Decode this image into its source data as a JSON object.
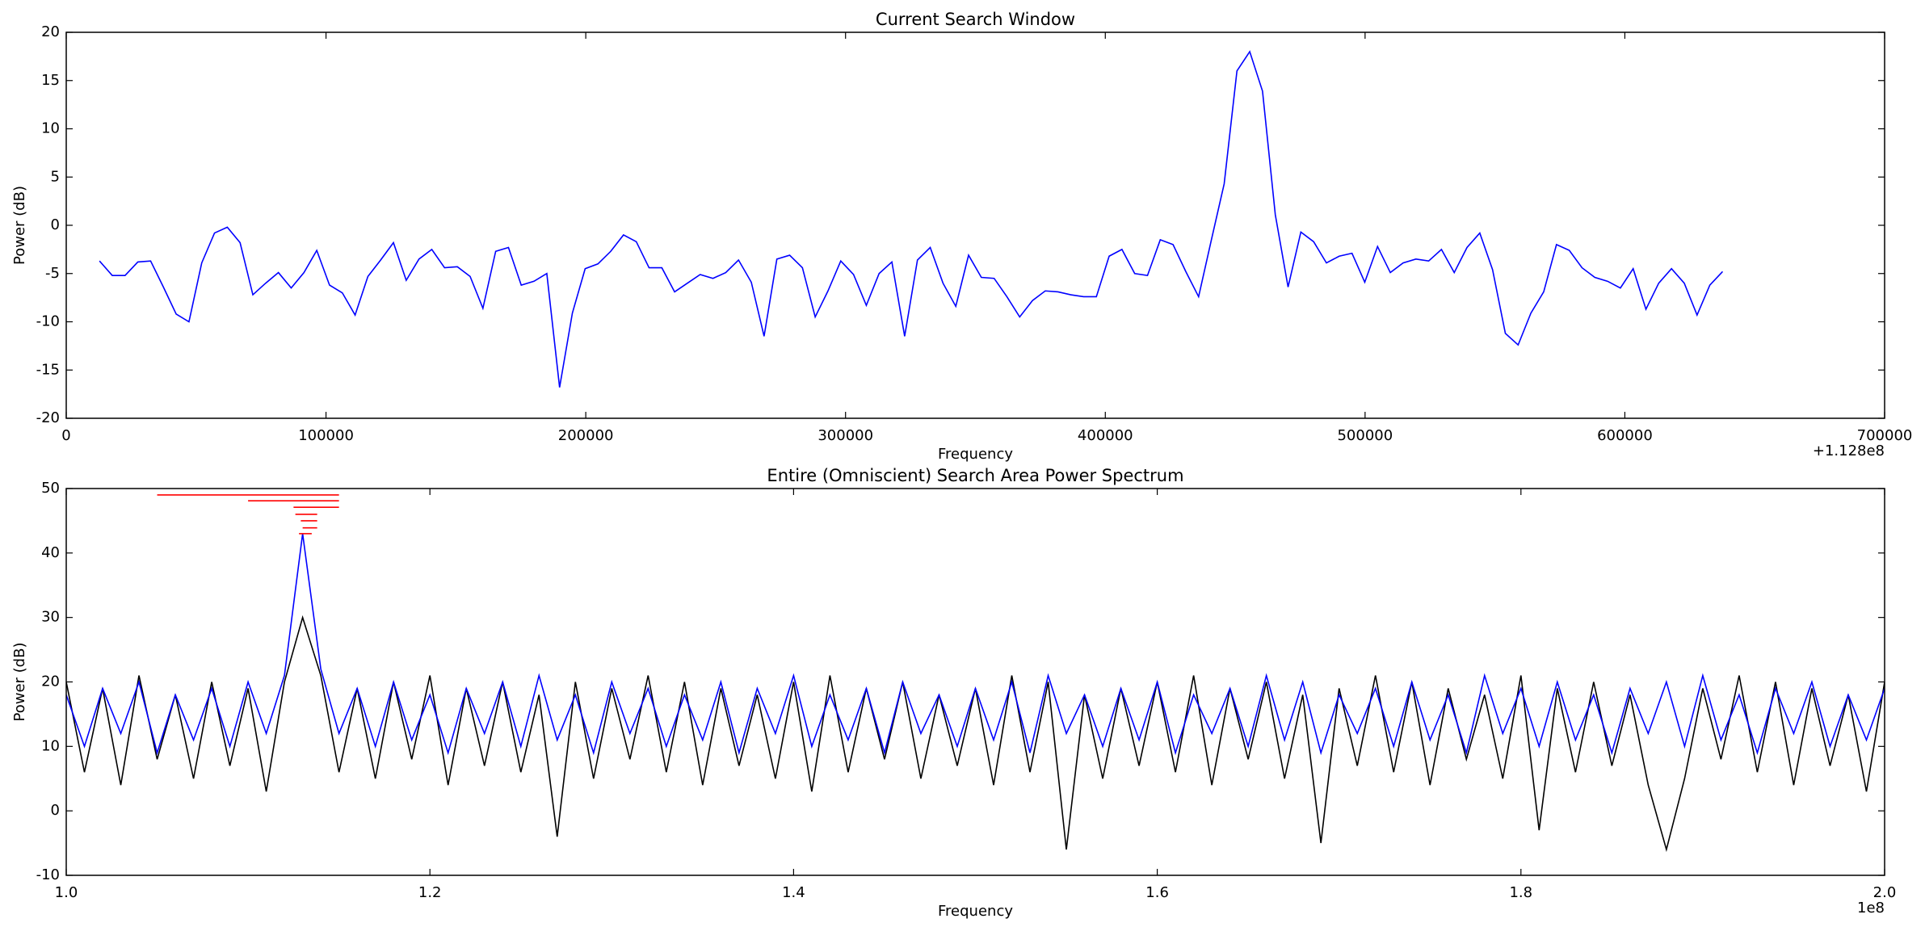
{
  "chart_data": [
    {
      "type": "line",
      "title": "Current Search Window",
      "x_label": "Frequency",
      "y_label": "Power (dB)",
      "x_offset_label": "+1.128e8",
      "color": "#0000ff",
      "x": [
        12800,
        17720,
        22640,
        27560,
        32480,
        37400,
        42320,
        47240,
        52160,
        57080,
        62000,
        66920,
        71840,
        76760,
        81680,
        86600,
        91520,
        96440,
        101360,
        106280,
        111200,
        116120,
        121040,
        125960,
        130880,
        135800,
        140720,
        145640,
        150560,
        155480,
        160400,
        165320,
        170240,
        175160,
        180080,
        185000,
        189920,
        194840,
        199760,
        204680,
        209600,
        214520,
        219440,
        224360,
        229280,
        234200,
        239120,
        244040,
        248960,
        253880,
        258800,
        263720,
        268640,
        273560,
        278480,
        283400,
        288320,
        293240,
        298160,
        303080,
        308000,
        312920,
        317840,
        322760,
        327680,
        332600,
        337520,
        342440,
        347360,
        352280,
        357200,
        362120,
        367040,
        371960,
        376880,
        381800,
        386720,
        391640,
        396560,
        401480,
        406400,
        411320,
        416240,
        421160,
        426080,
        431000,
        435920,
        440840,
        445760,
        450680,
        455600,
        460520,
        465440,
        470360,
        475280,
        480200,
        485120,
        490040,
        494960,
        499880,
        504800,
        509720,
        514640,
        519560,
        524480,
        529400,
        534320,
        539240,
        544160,
        549080,
        554000,
        558920,
        563840,
        568760,
        573680,
        578600,
        583520,
        588440,
        593360,
        598280,
        603200,
        608120,
        613040,
        617960,
        622880,
        627800,
        632720,
        637640
      ],
      "values": [
        -3.7,
        -5.2,
        -5.2,
        -3.8,
        -3.7,
        -6.4,
        -9.2,
        -10,
        -3.9,
        -0.8,
        -0.2,
        -1.8,
        -7.2,
        -6,
        -4.9,
        -6.5,
        -4.9,
        -2.6,
        -6.2,
        -7,
        -9.3,
        -5.3,
        -3.6,
        -1.8,
        -5.7,
        -3.5,
        -2.5,
        -4.4,
        -4.3,
        -5.3,
        -8.6,
        -2.7,
        -2.3,
        -6.2,
        -5.8,
        -5,
        -16.8,
        -9.1,
        -4.5,
        -4,
        -2.7,
        -1,
        -1.7,
        -4.4,
        -4.4,
        -6.9,
        -6,
        -5.1,
        -5.5,
        -4.9,
        -3.6,
        -5.9,
        -11.5,
        -3.5,
        -3.1,
        -4.4,
        -9.5,
        -6.8,
        -3.7,
        -5.1,
        -8.3,
        -5,
        -3.8,
        -11.5,
        -3.6,
        -2.3,
        -6,
        -8.4,
        -3.1,
        -5.4,
        -5.5,
        -7.4,
        -9.5,
        -7.8,
        -6.8,
        -6.9,
        -7.2,
        -7.4,
        -7.4,
        -3.2,
        -2.5,
        -5,
        -5.2,
        -1.5,
        -2,
        -4.8,
        -7.4,
        -1.5,
        4.3,
        16,
        18,
        13.9,
        1.1,
        -6.4,
        -0.7,
        -1.7,
        -3.9,
        -3.2,
        -2.9,
        -5.9,
        -2.2,
        -4.9,
        -3.9,
        -3.5,
        -3.7,
        -2.5,
        -4.9,
        -2.3,
        -0.8,
        -4.6,
        -11.2,
        -12.4,
        -9.1,
        -6.9,
        -2,
        -2.6,
        -4.4,
        -5.4,
        -5.8,
        -6.5,
        -4.5,
        -8.7,
        -6,
        -4.5,
        -6,
        -9.3,
        -6.2,
        -4.8
      ],
      "xlim": [
        0,
        700000
      ],
      "xticks": [
        0,
        100000,
        200000,
        300000,
        400000,
        500000,
        600000,
        700000
      ],
      "ylim": [
        -20,
        20
      ],
      "yticks": [
        -20,
        -15,
        -10,
        -5,
        0,
        5,
        10,
        15,
        20
      ]
    },
    {
      "type": "line",
      "title": "Entire (Omniscient) Search Area Power Spectrum",
      "x_label": "Frequency",
      "y_label": "Power (dB)",
      "x_offset_label": "1e8",
      "x": [
        100000000,
        101000000,
        102000000,
        103000000,
        104000000,
        105000000,
        106000000,
        107000000,
        108000000,
        109000000,
        110000000,
        111000000,
        112000000,
        113000000,
        114000000,
        115000000,
        116000000,
        117000000,
        118000000,
        119000000,
        120000000,
        121000000,
        122000000,
        123000000,
        124000000,
        125000000,
        126000000,
        127000000,
        128000000,
        129000000,
        130000000,
        131000000,
        132000000,
        133000000,
        134000000,
        135000000,
        136000000,
        137000000,
        138000000,
        139000000,
        140000000,
        141000000,
        142000000,
        143000000,
        144000000,
        145000000,
        146000000,
        147000000,
        148000000,
        149000000,
        150000000,
        151000000,
        152000000,
        153000000,
        154000000,
        155000000,
        156000000,
        157000000,
        158000000,
        159000000,
        160000000,
        161000000,
        162000000,
        163000000,
        164000000,
        165000000,
        166000000,
        167000000,
        168000000,
        169000000,
        170000000,
        171000000,
        172000000,
        173000000,
        174000000,
        175000000,
        176000000,
        177000000,
        178000000,
        179000000,
        180000000,
        181000000,
        182000000,
        183000000,
        184000000,
        185000000,
        186000000,
        187000000,
        188000000,
        189000000,
        190000000,
        191000000,
        192000000,
        193000000,
        194000000,
        195000000,
        196000000,
        197000000,
        198000000,
        199000000,
        200000000
      ],
      "series": [
        {
          "color": "#000000",
          "values": [
            20,
            6,
            19,
            4,
            21,
            8,
            18,
            5,
            20,
            7,
            19,
            3,
            20,
            30,
            21,
            6,
            19,
            5,
            20,
            8,
            21,
            4,
            19,
            7,
            20,
            6,
            18,
            -4,
            20,
            5,
            19,
            8,
            21,
            6,
            20,
            4,
            19,
            7,
            18,
            5,
            20,
            3,
            21,
            6,
            19,
            8,
            20,
            5,
            18,
            7,
            19,
            4,
            21,
            6,
            20,
            -6,
            18,
            5,
            19,
            7,
            20,
            6,
            21,
            4,
            19,
            8,
            20,
            5,
            18,
            -5,
            19,
            7,
            21,
            6,
            20,
            4,
            19,
            8,
            18,
            5,
            21,
            -3,
            19,
            6,
            20,
            7,
            18,
            4,
            -6,
            5,
            19,
            8,
            21,
            6,
            20,
            4,
            19,
            7,
            18,
            3,
            20
          ]
        },
        {
          "color": "#0000ff",
          "values": [
            18,
            10,
            19,
            12,
            20,
            9,
            18,
            11,
            19,
            10,
            20,
            12,
            21,
            43,
            22,
            12,
            19,
            10,
            20,
            11,
            18,
            9,
            19,
            12,
            20,
            10,
            21,
            11,
            18,
            9,
            20,
            12,
            19,
            10,
            18,
            11,
            20,
            9,
            19,
            12,
            21,
            10,
            18,
            11,
            19,
            9,
            20,
            12,
            18,
            10,
            19,
            11,
            20,
            9,
            21,
            12,
            18,
            10,
            19,
            11,
            20,
            9,
            18,
            12,
            19,
            10,
            21,
            11,
            20,
            9,
            18,
            12,
            19,
            10,
            20,
            11,
            18,
            9,
            21,
            12,
            19,
            10,
            20,
            11,
            18,
            9,
            19,
            12,
            20,
            10,
            21,
            11,
            18,
            9,
            19,
            12,
            20,
            10,
            18,
            11,
            19
          ]
        }
      ],
      "marker_color": "#ff0000",
      "markers": [
        {
          "x": [
            105000000,
            115000000
          ],
          "y": 49
        },
        {
          "x": [
            110000000,
            115000000
          ],
          "y": 48.1
        },
        {
          "x": [
            112500000,
            115000000
          ],
          "y": 47.1
        },
        {
          "x": [
            112600000,
            113800000
          ],
          "y": 46
        },
        {
          "x": [
            112900000,
            113800000
          ],
          "y": 45
        },
        {
          "x": [
            113000000,
            113800000
          ],
          "y": 43.9
        },
        {
          "x": [
            112800000,
            113500000
          ],
          "y": 43
        }
      ],
      "xlim": [
        100000000,
        200000000
      ],
      "xticks": [
        {
          "value": 100000000,
          "label": "1.0"
        },
        {
          "value": 120000000,
          "label": "1.2"
        },
        {
          "value": 140000000,
          "label": "1.4"
        },
        {
          "value": 160000000,
          "label": "1.6"
        },
        {
          "value": 180000000,
          "label": "1.8"
        },
        {
          "value": 200000000,
          "label": "2.0"
        }
      ],
      "ylim": [
        -10,
        50
      ],
      "yticks": [
        -10,
        0,
        10,
        20,
        30,
        40,
        50
      ]
    }
  ]
}
